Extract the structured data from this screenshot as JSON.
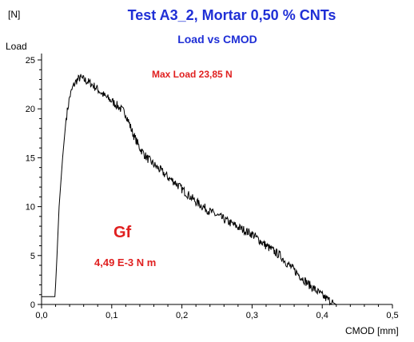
{
  "chart_data": {
    "type": "line",
    "title": "Test A3_2,  Mortar 0,50 % CNTs",
    "subtitle": "Load vs CMOD",
    "y_unit": "[N]",
    "ylabel": "Load",
    "xlabel": "CMOD  [mm]",
    "xlim": [
      0,
      0.5
    ],
    "ylim": [
      0,
      25
    ],
    "x_ticks": [
      "0,0",
      "0,1",
      "0,2",
      "0,3",
      "0,4",
      "0,5"
    ],
    "y_ticks": [
      "0",
      "5",
      "10",
      "15",
      "20",
      "25"
    ],
    "grid": false,
    "legend": "none",
    "annotations": {
      "max_load": "Max Load 23,85 N",
      "gf_label": "Gf",
      "gf_value": "4,49 E-3 N m"
    },
    "colors": {
      "title": "#1f2fd6",
      "annotation": "#e02020",
      "curve": "#000000"
    },
    "series": [
      {
        "x": [
          0.0,
          0.019,
          0.02,
          0.022,
          0.025,
          0.03,
          0.035,
          0.04,
          0.045,
          0.05,
          0.055,
          0.06,
          0.07,
          0.08,
          0.09,
          0.1,
          0.11,
          0.12,
          0.13,
          0.14,
          0.15,
          0.16,
          0.17,
          0.18,
          0.19,
          0.2,
          0.22,
          0.24,
          0.26,
          0.28,
          0.3,
          0.31,
          0.32,
          0.33,
          0.34,
          0.35,
          0.36,
          0.37,
          0.38,
          0.39,
          0.4,
          0.41,
          0.42
        ],
        "y": [
          0.8,
          0.8,
          2.0,
          5.0,
          10.0,
          15.0,
          19.0,
          21.2,
          22.3,
          22.9,
          23.2,
          23.0,
          22.6,
          22.0,
          21.3,
          20.8,
          20.2,
          19.5,
          17.5,
          16.0,
          15.0,
          14.3,
          13.7,
          13.0,
          12.5,
          11.8,
          10.5,
          9.5,
          8.7,
          7.9,
          7.2,
          6.6,
          6.0,
          5.5,
          5.0,
          4.2,
          3.5,
          2.8,
          2.1,
          1.5,
          0.9,
          0.4,
          0.0
        ]
      }
    ]
  }
}
